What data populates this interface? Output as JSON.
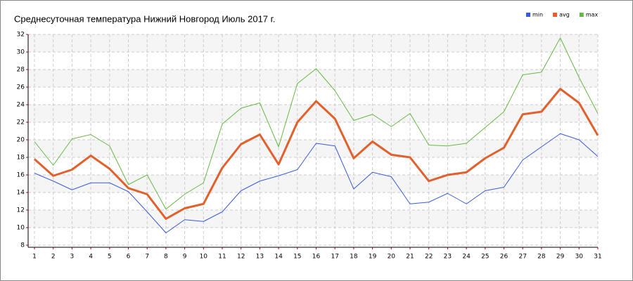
{
  "chart_data": {
    "type": "line",
    "title": "Среднесуточная температура Нижний Новгород  Июль 2017 г.",
    "x": [
      1,
      2,
      3,
      4,
      5,
      6,
      7,
      8,
      9,
      10,
      11,
      12,
      13,
      14,
      15,
      16,
      17,
      18,
      19,
      20,
      21,
      22,
      23,
      24,
      25,
      26,
      27,
      28,
      29,
      30,
      31
    ],
    "series": [
      {
        "name": "min",
        "color": "#3a5bd9",
        "width": 1,
        "values": [
          16.2,
          15.3,
          14.3,
          15.1,
          15.1,
          14.1,
          11.8,
          9.4,
          10.9,
          10.7,
          11.8,
          14.2,
          15.3,
          15.9,
          16.6,
          19.6,
          19.3,
          14.4,
          16.3,
          15.8,
          12.7,
          12.9,
          13.9,
          12.7,
          14.2,
          14.6,
          17.7,
          19.2,
          20.7,
          20.0,
          18.1
        ]
      },
      {
        "name": "avg",
        "color": "#e2602c",
        "width": 3,
        "values": [
          17.8,
          15.9,
          16.6,
          18.2,
          16.7,
          14.5,
          13.8,
          11.0,
          12.2,
          12.7,
          16.8,
          19.5,
          20.6,
          17.2,
          22.0,
          24.4,
          22.4,
          17.9,
          19.8,
          18.3,
          18.0,
          15.3,
          16.0,
          16.3,
          17.9,
          19.1,
          22.9,
          23.2,
          25.8,
          24.2,
          20.5
        ]
      },
      {
        "name": "max",
        "color": "#66b944",
        "width": 1,
        "values": [
          19.8,
          17.1,
          20.1,
          20.6,
          19.3,
          14.9,
          16.0,
          12.1,
          13.8,
          15.1,
          21.8,
          23.6,
          24.2,
          19.2,
          26.4,
          28.1,
          25.6,
          22.2,
          22.9,
          21.5,
          23.0,
          19.4,
          19.3,
          19.6,
          21.4,
          23.2,
          27.4,
          27.7,
          31.6,
          27.1,
          23.0
        ]
      }
    ],
    "xlim": [
      1,
      31
    ],
    "xticks": [
      1,
      2,
      3,
      4,
      5,
      6,
      7,
      8,
      9,
      10,
      11,
      12,
      13,
      14,
      15,
      16,
      17,
      18,
      19,
      20,
      21,
      22,
      23,
      24,
      25,
      26,
      27,
      28,
      29,
      30,
      31
    ],
    "ylim": [
      8,
      32
    ],
    "yticks": [
      8,
      10,
      12,
      14,
      16,
      18,
      20,
      22,
      24,
      26,
      28,
      30,
      32
    ],
    "grid": true,
    "legend": "top-right"
  }
}
